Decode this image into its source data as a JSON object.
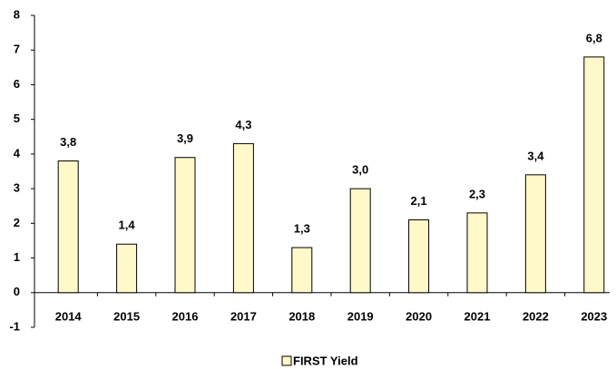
{
  "chart_data": {
    "type": "bar",
    "categories": [
      "2014",
      "2015",
      "2016",
      "2017",
      "2018",
      "2019",
      "2020",
      "2021",
      "2022",
      "2023"
    ],
    "series": [
      {
        "name": "FIRST Yield",
        "color": "#fff8c8",
        "values": [
          3.8,
          1.4,
          3.9,
          4.3,
          1.3,
          3.0,
          2.1,
          2.3,
          3.4,
          6.8
        ],
        "value_labels": [
          "3,8",
          "1,4",
          "3,9",
          "4,3",
          "1,3",
          "3,0",
          "2,1",
          "2,3",
          "3,4",
          "6,8"
        ]
      }
    ],
    "ylim": [
      -1,
      8
    ],
    "yticks": [
      -1,
      0,
      1,
      2,
      3,
      4,
      5,
      6,
      7,
      8
    ],
    "legend": "bottom"
  }
}
